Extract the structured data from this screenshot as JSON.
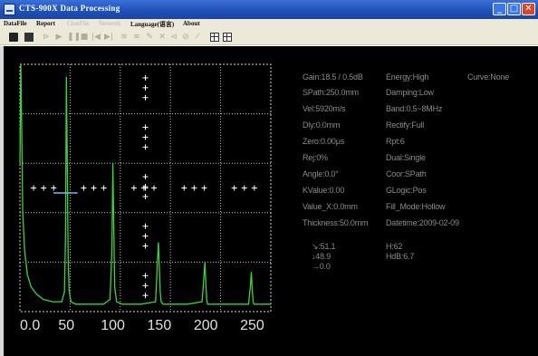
{
  "window": {
    "title": "CTS-900X Data Processing",
    "buttons": {
      "minimize": "_",
      "maximize": "□",
      "close": "✕"
    }
  },
  "menu": [
    {
      "label": "DataFile",
      "enabled": true
    },
    {
      "label": "Report",
      "enabled": true
    },
    {
      "label": "ClonFile",
      "enabled": false
    },
    {
      "label": "Network",
      "enabled": false
    },
    {
      "label": "Language(语言)",
      "enabled": true
    },
    {
      "label": "About",
      "enabled": true
    }
  ],
  "toolbar": {
    "icons": [
      "open-icon",
      "save-icon",
      "play-icon",
      "play-icon",
      "pause-icon",
      "stop-icon",
      "rewind-icon",
      "forward-icon",
      "tool-icon",
      "tool-icon",
      "tool-icon",
      "tool-icon",
      "tool-icon",
      "tool-icon",
      "tool-icon",
      "grid-icon",
      "grid-icon"
    ]
  },
  "params": {
    "gain": "Gain:18.5 / 0.5dB",
    "energy": "Energy:High",
    "curve": "Curve:None",
    "spath": "SPath:250.0mm",
    "damping": "Damping:Low",
    "vel": "Vel:5920m/s",
    "band": "Band:0.5~8MHz",
    "dly": "Dly:0.0mm",
    "rectify": "Rectify:Full",
    "zero": "Zero:0.00μs",
    "rpt": "Rpt:6",
    "rej": "Rej:0%",
    "dual": "Dual:Single",
    "angle": "Angle:0.0°",
    "coor": "Coor:SPath",
    "kvalue": "KValue:0.00",
    "glogic": "GLogic:Pos",
    "value_x": "Value_X:0.0mm",
    "fill_mode": "Fill_Mode:Hollow",
    "thickness": "Thickness:50.0mm",
    "datetime": "Datetime:2009-02-09"
  },
  "readout": {
    "s": "↘:51.1",
    "depth": "↓48.9",
    "x": "→0.0",
    "h": "H:62",
    "hdb": "HdB:6.7"
  },
  "chart_data": {
    "type": "line",
    "xlabel": "",
    "ylabel": "",
    "xlim": [
      0,
      270
    ],
    "ylim": [
      0,
      100
    ],
    "x_ticks": [
      0.0,
      50,
      100,
      150,
      200,
      250
    ],
    "x_tick_labels": [
      "0.0",
      "50",
      "100",
      "150",
      "200",
      "250"
    ],
    "grid": true,
    "series": [
      {
        "color": "#3cd23c",
        "x": [
          0,
          1,
          2,
          3,
          5,
          8,
          12,
          18,
          25,
          35,
          45,
          48,
          49,
          50,
          51,
          52,
          53,
          55,
          60,
          70,
          90,
          97,
          99,
          100,
          101,
          102,
          104,
          110,
          130,
          146,
          148,
          149,
          150,
          151,
          152,
          154,
          160,
          180,
          196,
          198,
          199,
          200,
          201,
          202,
          204,
          210,
          230,
          246,
          248,
          249,
          250,
          251,
          252,
          254,
          260,
          270
        ],
        "y": [
          60,
          100,
          70,
          40,
          25,
          15,
          10,
          7,
          5,
          4,
          4,
          8,
          30,
          95,
          60,
          20,
          8,
          4,
          3,
          3,
          3,
          5,
          25,
          60,
          35,
          10,
          4,
          3,
          3,
          4,
          20,
          28,
          18,
          8,
          4,
          3,
          3,
          3,
          4,
          14,
          20,
          12,
          5,
          3,
          3,
          3,
          3,
          3,
          10,
          16,
          9,
          4,
          3,
          3,
          3,
          3
        ]
      }
    ],
    "gate": {
      "x_start": 36,
      "x_end": 62,
      "y": 48
    }
  }
}
